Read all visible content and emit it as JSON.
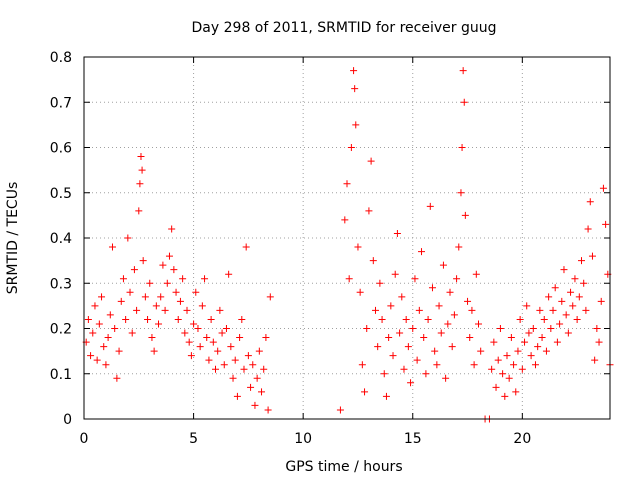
{
  "chart_data": {
    "type": "scatter",
    "title": "Day 298 of 2011, SRMTID for receiver guug",
    "xlabel": "GPS time / hours",
    "ylabel": "SRMTID / TECUs",
    "xlim": [
      0,
      24
    ],
    "ylim": [
      0,
      0.8
    ],
    "xticks": [
      0,
      5,
      10,
      15,
      20
    ],
    "xtick_labels": [
      "0",
      "5",
      "10",
      "15",
      "20"
    ],
    "yticks": [
      0,
      0.1,
      0.2,
      0.3,
      0.4,
      0.5,
      0.6,
      0.7,
      0.8
    ],
    "ytick_labels": [
      "0",
      "0.1",
      "0.2",
      "0.3",
      "0.4",
      "0.5",
      "0.6",
      "0.7",
      "0.8"
    ],
    "grid": true,
    "marker": "+",
    "color": "#ff0000",
    "series": [
      {
        "name": "SRMTID",
        "points": [
          [
            0.1,
            0.17
          ],
          [
            0.2,
            0.22
          ],
          [
            0.3,
            0.14
          ],
          [
            0.4,
            0.19
          ],
          [
            0.5,
            0.25
          ],
          [
            0.6,
            0.13
          ],
          [
            0.7,
            0.21
          ],
          [
            0.8,
            0.27
          ],
          [
            0.9,
            0.16
          ],
          [
            1.0,
            0.12
          ],
          [
            1.1,
            0.18
          ],
          [
            1.2,
            0.23
          ],
          [
            1.3,
            0.38
          ],
          [
            1.4,
            0.2
          ],
          [
            1.5,
            0.09
          ],
          [
            1.6,
            0.15
          ],
          [
            1.7,
            0.26
          ],
          [
            1.8,
            0.31
          ],
          [
            1.9,
            0.22
          ],
          [
            2.0,
            0.4
          ],
          [
            2.1,
            0.28
          ],
          [
            2.2,
            0.19
          ],
          [
            2.3,
            0.33
          ],
          [
            2.4,
            0.24
          ],
          [
            2.5,
            0.46
          ],
          [
            2.55,
            0.52
          ],
          [
            2.6,
            0.58
          ],
          [
            2.65,
            0.55
          ],
          [
            2.7,
            0.35
          ],
          [
            2.8,
            0.27
          ],
          [
            2.9,
            0.22
          ],
          [
            3.0,
            0.3
          ],
          [
            3.1,
            0.18
          ],
          [
            3.2,
            0.15
          ],
          [
            3.3,
            0.25
          ],
          [
            3.4,
            0.21
          ],
          [
            3.5,
            0.27
          ],
          [
            3.6,
            0.34
          ],
          [
            3.7,
            0.24
          ],
          [
            3.8,
            0.3
          ],
          [
            3.9,
            0.36
          ],
          [
            4.0,
            0.42
          ],
          [
            4.1,
            0.33
          ],
          [
            4.2,
            0.28
          ],
          [
            4.3,
            0.22
          ],
          [
            4.4,
            0.26
          ],
          [
            4.5,
            0.31
          ],
          [
            4.6,
            0.19
          ],
          [
            4.7,
            0.24
          ],
          [
            4.8,
            0.17
          ],
          [
            4.9,
            0.14
          ],
          [
            5.0,
            0.21
          ],
          [
            5.1,
            0.28
          ],
          [
            5.2,
            0.2
          ],
          [
            5.3,
            0.16
          ],
          [
            5.4,
            0.25
          ],
          [
            5.5,
            0.31
          ],
          [
            5.6,
            0.18
          ],
          [
            5.7,
            0.13
          ],
          [
            5.8,
            0.22
          ],
          [
            5.9,
            0.17
          ],
          [
            6.0,
            0.11
          ],
          [
            6.1,
            0.15
          ],
          [
            6.2,
            0.24
          ],
          [
            6.3,
            0.19
          ],
          [
            6.4,
            0.12
          ],
          [
            6.5,
            0.2
          ],
          [
            6.6,
            0.32
          ],
          [
            6.7,
            0.16
          ],
          [
            6.8,
            0.09
          ],
          [
            6.9,
            0.13
          ],
          [
            7.0,
            0.05
          ],
          [
            7.1,
            0.18
          ],
          [
            7.2,
            0.22
          ],
          [
            7.3,
            0.11
          ],
          [
            7.4,
            0.38
          ],
          [
            7.5,
            0.14
          ],
          [
            7.6,
            0.07
          ],
          [
            7.7,
            0.12
          ],
          [
            7.8,
            0.03
          ],
          [
            7.9,
            0.09
          ],
          [
            8.0,
            0.15
          ],
          [
            8.1,
            0.06
          ],
          [
            8.2,
            0.11
          ],
          [
            8.3,
            0.18
          ],
          [
            8.4,
            0.02
          ],
          [
            8.5,
            0.27
          ],
          [
            11.7,
            0.02
          ],
          [
            11.9,
            0.44
          ],
          [
            12.0,
            0.52
          ],
          [
            12.1,
            0.31
          ],
          [
            12.2,
            0.6
          ],
          [
            12.3,
            0.77
          ],
          [
            12.35,
            0.73
          ],
          [
            12.4,
            0.65
          ],
          [
            12.5,
            0.38
          ],
          [
            12.6,
            0.28
          ],
          [
            12.7,
            0.12
          ],
          [
            12.8,
            0.06
          ],
          [
            12.9,
            0.2
          ],
          [
            13.0,
            0.46
          ],
          [
            13.1,
            0.57
          ],
          [
            13.2,
            0.35
          ],
          [
            13.3,
            0.24
          ],
          [
            13.4,
            0.16
          ],
          [
            13.5,
            0.3
          ],
          [
            13.6,
            0.22
          ],
          [
            13.7,
            0.1
          ],
          [
            13.8,
            0.05
          ],
          [
            13.9,
            0.18
          ],
          [
            14.0,
            0.25
          ],
          [
            14.1,
            0.14
          ],
          [
            14.2,
            0.32
          ],
          [
            14.3,
            0.41
          ],
          [
            14.4,
            0.19
          ],
          [
            14.5,
            0.27
          ],
          [
            14.6,
            0.11
          ],
          [
            14.7,
            0.22
          ],
          [
            14.8,
            0.16
          ],
          [
            14.9,
            0.08
          ],
          [
            15.0,
            0.2
          ],
          [
            15.1,
            0.31
          ],
          [
            15.2,
            0.13
          ],
          [
            15.3,
            0.24
          ],
          [
            15.4,
            0.37
          ],
          [
            15.5,
            0.18
          ],
          [
            15.6,
            0.1
          ],
          [
            15.7,
            0.22
          ],
          [
            15.8,
            0.47
          ],
          [
            15.9,
            0.29
          ],
          [
            16.0,
            0.15
          ],
          [
            16.1,
            0.12
          ],
          [
            16.2,
            0.25
          ],
          [
            16.3,
            0.19
          ],
          [
            16.4,
            0.34
          ],
          [
            16.5,
            0.09
          ],
          [
            16.6,
            0.21
          ],
          [
            16.7,
            0.28
          ],
          [
            16.8,
            0.16
          ],
          [
            16.9,
            0.23
          ],
          [
            17.0,
            0.31
          ],
          [
            17.1,
            0.38
          ],
          [
            17.2,
            0.5
          ],
          [
            17.25,
            0.6
          ],
          [
            17.3,
            0.77
          ],
          [
            17.35,
            0.7
          ],
          [
            17.4,
            0.45
          ],
          [
            17.5,
            0.26
          ],
          [
            17.6,
            0.18
          ],
          [
            17.7,
            0.24
          ],
          [
            17.8,
            0.12
          ],
          [
            17.9,
            0.32
          ],
          [
            18.0,
            0.21
          ],
          [
            18.1,
            0.15
          ],
          [
            18.3,
            0.0
          ],
          [
            18.5,
            0.0
          ],
          [
            18.6,
            0.11
          ],
          [
            18.7,
            0.17
          ],
          [
            18.8,
            0.07
          ],
          [
            18.9,
            0.13
          ],
          [
            19.0,
            0.2
          ],
          [
            19.1,
            0.1
          ],
          [
            19.2,
            0.05
          ],
          [
            19.3,
            0.14
          ],
          [
            19.4,
            0.09
          ],
          [
            19.5,
            0.18
          ],
          [
            19.6,
            0.12
          ],
          [
            19.7,
            0.06
          ],
          [
            19.8,
            0.15
          ],
          [
            19.9,
            0.22
          ],
          [
            20.0,
            0.11
          ],
          [
            20.1,
            0.17
          ],
          [
            20.2,
            0.25
          ],
          [
            20.3,
            0.19
          ],
          [
            20.4,
            0.14
          ],
          [
            20.5,
            0.2
          ],
          [
            20.6,
            0.12
          ],
          [
            20.7,
            0.16
          ],
          [
            20.8,
            0.24
          ],
          [
            20.9,
            0.18
          ],
          [
            21.0,
            0.22
          ],
          [
            21.1,
            0.15
          ],
          [
            21.2,
            0.27
          ],
          [
            21.3,
            0.2
          ],
          [
            21.4,
            0.24
          ],
          [
            21.5,
            0.29
          ],
          [
            21.6,
            0.17
          ],
          [
            21.7,
            0.21
          ],
          [
            21.8,
            0.26
          ],
          [
            21.9,
            0.33
          ],
          [
            22.0,
            0.23
          ],
          [
            22.1,
            0.19
          ],
          [
            22.2,
            0.28
          ],
          [
            22.3,
            0.25
          ],
          [
            22.4,
            0.31
          ],
          [
            22.5,
            0.22
          ],
          [
            22.6,
            0.27
          ],
          [
            22.7,
            0.35
          ],
          [
            22.8,
            0.3
          ],
          [
            22.9,
            0.24
          ],
          [
            23.0,
            0.42
          ],
          [
            23.1,
            0.48
          ],
          [
            23.2,
            0.36
          ],
          [
            23.3,
            0.13
          ],
          [
            23.4,
            0.2
          ],
          [
            23.5,
            0.17
          ],
          [
            23.6,
            0.26
          ],
          [
            23.7,
            0.51
          ],
          [
            23.8,
            0.43
          ],
          [
            23.9,
            0.32
          ],
          [
            24.0,
            0.12
          ]
        ]
      }
    ]
  }
}
